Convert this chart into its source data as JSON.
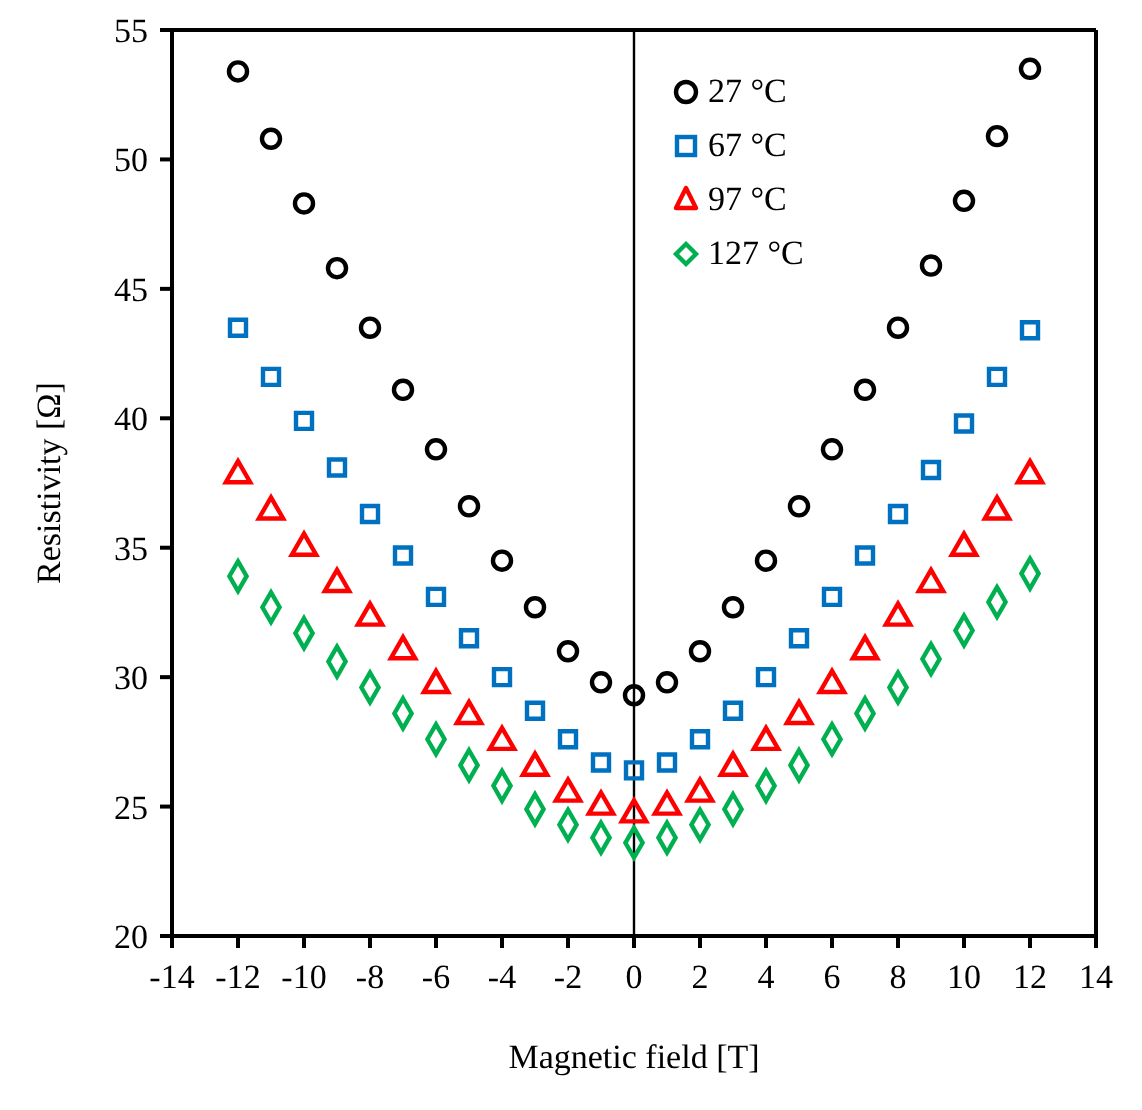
{
  "chart_data": {
    "type": "scatter",
    "xlabel": "Magnetic field [T]",
    "ylabel": "Resistivity  [Ω]",
    "x": [
      -12,
      -11,
      -10,
      -9,
      -8,
      -7,
      -6,
      -5,
      -4,
      -3,
      -2,
      -1,
      0,
      1,
      2,
      3,
      4,
      5,
      6,
      7,
      8,
      9,
      10,
      11,
      12
    ],
    "series": [
      {
        "name": "27 °C",
        "color": "#000000",
        "marker": "circle",
        "values": [
          53.4,
          50.8,
          48.3,
          45.8,
          43.5,
          41.1,
          38.8,
          36.6,
          34.5,
          32.7,
          31.0,
          29.8,
          29.3,
          29.8,
          31.0,
          32.7,
          34.5,
          36.6,
          38.8,
          41.1,
          43.5,
          45.9,
          48.4,
          50.9,
          53.5
        ]
      },
      {
        "name": "67 °C",
        "color": "#0070c0",
        "marker": "square",
        "values": [
          43.5,
          41.6,
          39.9,
          38.1,
          36.3,
          34.7,
          33.1,
          31.5,
          30.0,
          28.7,
          27.6,
          26.7,
          26.4,
          26.7,
          27.6,
          28.7,
          30.0,
          31.5,
          33.1,
          34.7,
          36.3,
          38.0,
          39.8,
          41.6,
          43.4
        ]
      },
      {
        "name": "97 °C",
        "color": "#ff0000",
        "marker": "triangle",
        "values": [
          37.8,
          36.4,
          35.0,
          33.6,
          32.3,
          31.0,
          29.7,
          28.5,
          27.5,
          26.5,
          25.5,
          25.0,
          24.7,
          25.0,
          25.5,
          26.5,
          27.5,
          28.5,
          29.7,
          31.0,
          32.3,
          33.6,
          35.0,
          36.4,
          37.8
        ]
      },
      {
        "name": "127 °C",
        "color": "#00b050",
        "marker": "diamond",
        "values": [
          33.9,
          32.7,
          31.7,
          30.6,
          29.6,
          28.6,
          27.6,
          26.6,
          25.8,
          24.9,
          24.3,
          23.8,
          23.6,
          23.8,
          24.3,
          24.9,
          25.8,
          26.6,
          27.6,
          28.6,
          29.6,
          30.7,
          31.8,
          32.9,
          34.0
        ]
      }
    ],
    "xlim": [
      -14,
      14
    ],
    "xticks": [
      -14,
      -12,
      -10,
      -8,
      -6,
      -4,
      -2,
      0,
      2,
      4,
      6,
      8,
      10,
      12,
      14
    ],
    "ylim": [
      20,
      55
    ],
    "yticks": [
      20,
      25,
      30,
      35,
      40,
      45,
      50,
      55
    ],
    "ref_lines": [
      {
        "axis": "x",
        "value": 0,
        "color": "#000000"
      }
    ],
    "grid": false,
    "legend": "top"
  }
}
